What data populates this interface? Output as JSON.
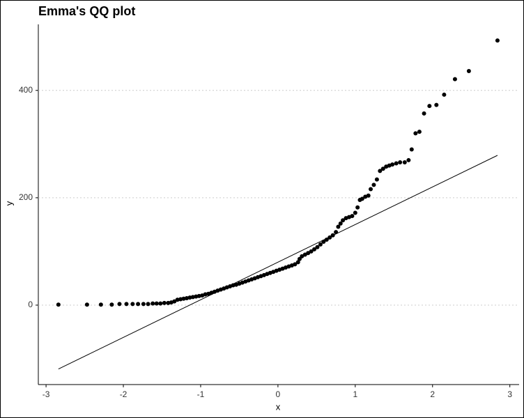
{
  "chart_data": {
    "type": "scatter",
    "title": "Emma's QQ plot",
    "x_label": "x",
    "y_label": "y",
    "xlim": [
      -3.1,
      3.12
    ],
    "ylim": [
      -148,
      523
    ],
    "xticks": [
      -3,
      -2,
      -1,
      0,
      1,
      2,
      3
    ],
    "yticks": [
      0,
      200,
      400
    ],
    "grid": true,
    "color": "#000000",
    "points": {
      "x": [
        -2.84,
        -2.47,
        -2.29,
        -2.15,
        -2.05,
        -1.96,
        -1.88,
        -1.81,
        -1.74,
        -1.68,
        -1.62,
        -1.57,
        -1.52,
        -1.47,
        -1.42,
        -1.38,
        -1.34,
        -1.3,
        -1.26,
        -1.22,
        -1.18,
        -1.14,
        -1.1,
        -1.06,
        -1.02,
        -0.98,
        -0.94,
        -0.9,
        -0.86,
        -0.82,
        -0.78,
        -0.74,
        -0.7,
        -0.66,
        -0.62,
        -0.58,
        -0.54,
        -0.5,
        -0.46,
        -0.42,
        -0.38,
        -0.34,
        -0.3,
        -0.26,
        -0.22,
        -0.18,
        -0.14,
        -0.1,
        -0.06,
        -0.02,
        0.02,
        0.06,
        0.1,
        0.14,
        0.18,
        0.22,
        0.26,
        0.28,
        0.31,
        0.35,
        0.39,
        0.43,
        0.47,
        0.51,
        0.55,
        0.59,
        0.63,
        0.67,
        0.71,
        0.75,
        0.78,
        0.81,
        0.84,
        0.88,
        0.92,
        0.96,
        1.0,
        1.03,
        1.06,
        1.09,
        1.13,
        1.17,
        1.2,
        1.24,
        1.28,
        1.32,
        1.36,
        1.4,
        1.44,
        1.48,
        1.53,
        1.58,
        1.64,
        1.69,
        1.73,
        1.78,
        1.83,
        1.89,
        1.96,
        2.05,
        2.15,
        2.29,
        2.47,
        2.84
      ],
      "y": [
        1,
        1,
        1,
        1,
        2,
        2,
        2,
        2,
        2,
        2,
        3,
        3,
        3,
        4,
        4,
        5,
        7,
        10,
        11,
        12,
        13,
        14,
        15,
        16,
        17,
        18,
        20,
        21,
        23,
        25,
        27,
        29,
        31,
        33,
        35,
        37,
        38,
        40,
        42,
        44,
        46,
        48,
        50,
        52,
        54,
        56,
        58,
        60,
        62,
        64,
        66,
        68,
        70,
        72,
        74,
        76,
        80,
        86,
        91,
        94,
        97,
        100,
        104,
        108,
        113,
        118,
        122,
        126,
        130,
        136,
        146,
        152,
        158,
        162,
        164,
        166,
        172,
        182,
        196,
        198,
        202,
        204,
        216,
        224,
        234,
        250,
        254,
        258,
        260,
        262,
        264,
        266,
        266,
        270,
        290,
        320,
        323,
        357,
        371,
        373,
        392,
        421,
        436,
        493
      ]
    },
    "reference_line": {
      "x": [
        -2.84,
        2.84
      ],
      "y": [
        -119,
        279
      ],
      "color": "#000000"
    }
  }
}
